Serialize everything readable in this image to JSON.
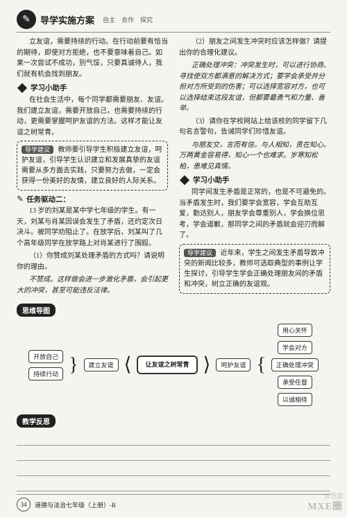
{
  "header": {
    "title": "导学实施方案",
    "subtitle": "自主　合作　探究"
  },
  "left": {
    "p1": "立友谊，需要持续的行动。在行动前要有恰当的期待，即使对方拒绝，也不要意味着自己。如果一次尝试不成功，别气馁，只要真诚待人，我们就有机会找到朋友。",
    "helper_title": "学习小助手",
    "p2": "在社会生活中，每个同学都需要朋友、友谊。我们建立友谊，需要开放自己，也需要持续的行动，更需要掌握呵护友谊的方法。这样才能让友谊之树常青。",
    "box1": "教师要引导学生积极建立友谊，呵护友谊，引导学生认识建立和发展真挚的友谊需要从多方面去实践，只要努力去做，一定会获得一份美好的友情，建立良好的人际关系。",
    "task_title": "任务驱动二：",
    "p3": "13 岁的刘某是某中学七年级的学生。有一天，刘某与肖某因误会发生了矛盾，还约定次日决斗。被同学劝阻止了。在放学后，刘某叫了几个高年级同学在放学路上对肖某进行了围殴。",
    "q1": "（1）你赞成刘某处理矛盾的方式吗？请说明你的理由。",
    "a1": "不赞成。这样做会进一步激化矛盾，会引起更大的冲突，甚至可能违反法律。"
  },
  "right": {
    "q2": "（2）朋友之间发生冲突时应该怎样做？请提出你的合理化建议。",
    "a2": "正确处理冲突：冲突发生时，可以进行协商、寻找使双方都满意的解决方式；要学会承受并分担对方所受到的伤害；可以选择宽容对方，也可以选择结束这段友谊，但都要最勇气和力量、善举。",
    "q3": "（3）请你在学校网站上给该校的同学留下几句名言警句，告诫同学们珍惜友谊。",
    "a3": "与朋友交，言而有信。与人相知，贵在知心。万两黄金容易得，知心一个也难求。岁寒知松柏，患难见真情。",
    "helper_title": "学习小助手",
    "p4": "同学间发生矛盾是正常的，也是不可避免的。当矛盾发生时，我们要学会宽容，学会互助互爱，勤达别人，朋友学会尊重别人，学会换位思考，学会道歉，那同学之间的矛盾就会迎刃而解了。",
    "box2": "近年来，学生之间发生矛盾导致冲突的新闻比较多，教师可选取典型的事例让学生探讨，引导学生学会正确处理朋友间的矛盾和冲突，树立正确的友谊观。"
  },
  "box_label": "导学建议",
  "mindmap": {
    "title": "思维导图",
    "left_nodes": [
      "开放自己",
      "持续行动"
    ],
    "left_parent": "建立友谊",
    "center": "让友谊之树常青",
    "right_parent": "呵护友谊",
    "right_nodes": [
      "用心关怀",
      "学会对方",
      "正确处理冲突",
      "承受任督",
      "以诚相待"
    ]
  },
  "reflect_title": "教学反思",
  "footer": {
    "page": "34",
    "text": "道德与法治七年级（上册）-R"
  },
  "watermark": {
    "small": "智慧圈",
    "big": "MXE圈"
  }
}
